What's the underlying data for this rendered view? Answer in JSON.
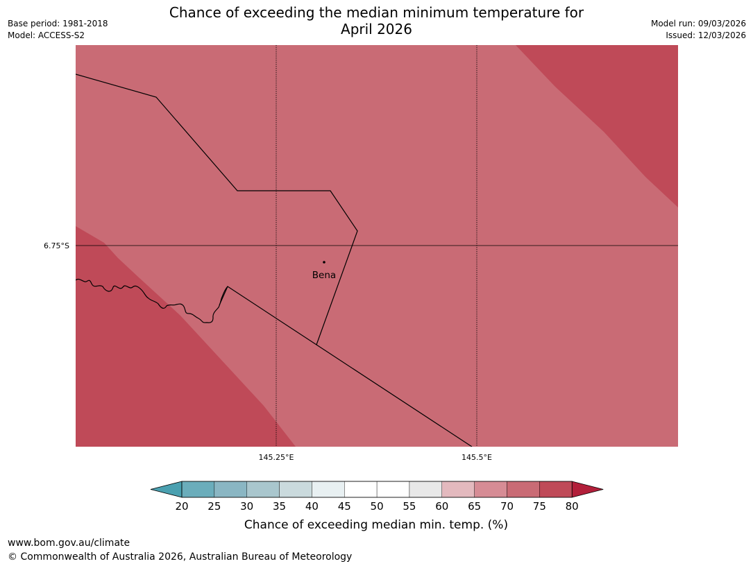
{
  "header": {
    "title_line1": "Chance of exceeding the median minimum temperature for",
    "title_line2": "April 2026",
    "base_period": "Base period: 1981-2018",
    "model": "Model: ACCESS-S2",
    "model_run": "Model run: 09/03/2026",
    "issued": "Issued: 12/03/2026"
  },
  "map": {
    "place_label": "Bena",
    "lat_label": "6.75°S",
    "lon_labels": [
      "145.25°E",
      "145.5°E"
    ],
    "colors": {
      "band_70_75": "#c96b75",
      "band_75_80": "#bf4a58",
      "boundary": "#000000",
      "graticule": "#000000"
    }
  },
  "colorbar": {
    "label": "Chance of exceeding median min. temp. (%)",
    "ticks": [
      "20",
      "25",
      "30",
      "35",
      "40",
      "45",
      "50",
      "55",
      "60",
      "65",
      "70",
      "75",
      "80"
    ],
    "below_color": "#4aa0b0",
    "above_color": "#b21f3a",
    "colors": [
      "#6badbb",
      "#8ab6c3",
      "#a9c6cd",
      "#cadadd",
      "#e8f0f2",
      "#ffffff",
      "#ffffff",
      "#e8e8e8",
      "#e3b9be",
      "#d68c95",
      "#c96b75",
      "#bf4a58"
    ]
  },
  "footer": {
    "url": "www.bom.gov.au/climate",
    "copyright": "© Commonwealth of Australia 2026, Australian Bureau of Meteorology"
  }
}
